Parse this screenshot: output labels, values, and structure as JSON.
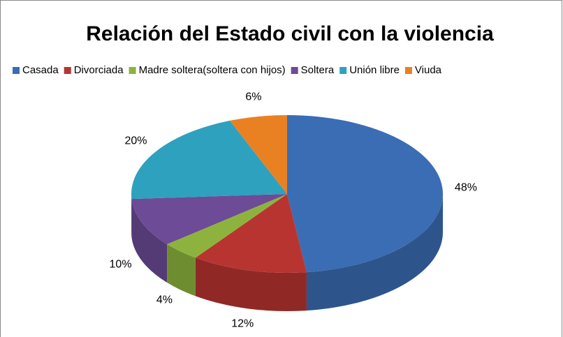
{
  "chart_data": {
    "type": "pie",
    "title": "Relación del Estado civil con la violencia",
    "categories": [
      "Casada",
      "Divorciada",
      "Madre soltera(soltera con hijos)",
      "Soltera",
      "Unión libre",
      "Viuda"
    ],
    "values": [
      48,
      12,
      4,
      10,
      20,
      6
    ],
    "value_labels": [
      "48%",
      "12%",
      "4%",
      "10%",
      "20%",
      "6%"
    ],
    "colors": [
      "#3a6db3",
      "#b83431",
      "#8db33e",
      "#6d4b96",
      "#2ea1bf",
      "#e98122"
    ],
    "legend": "top"
  }
}
